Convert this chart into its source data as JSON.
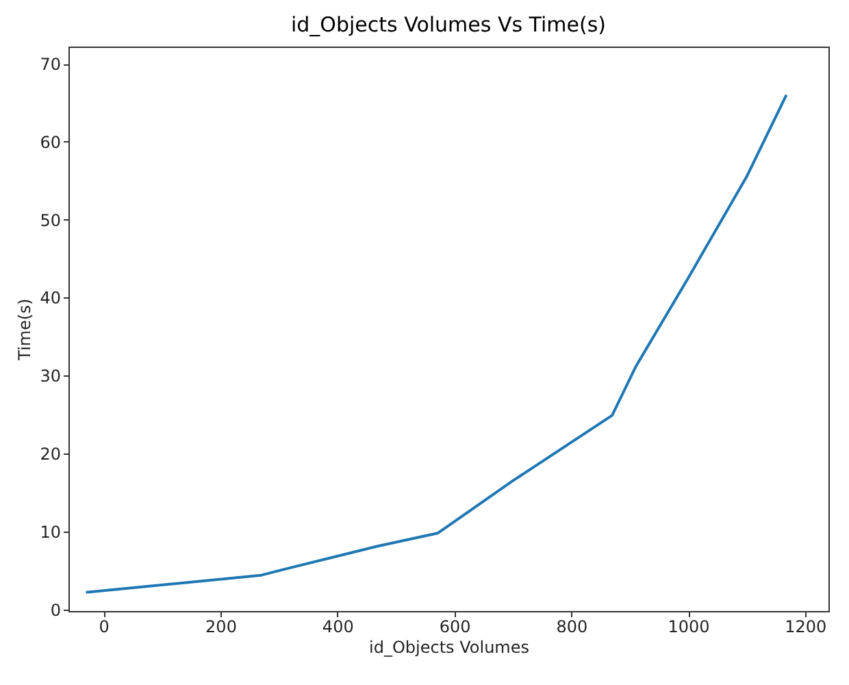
{
  "chart_data": {
    "type": "line",
    "title": "id_Objects Volumes Vs Time(s)",
    "xlabel": "id_Objects Volumes",
    "ylabel": "Time(s)",
    "x": [
      -30,
      270,
      317,
      468,
      572,
      700,
      870,
      910,
      1000,
      1100,
      1168
    ],
    "series": [
      {
        "color": "#1f77b4",
        "values": [
          2.2,
          4.4,
          5.3,
          8.1,
          9.8,
          16.5,
          24.9,
          31.1,
          42.5,
          55.5,
          66.0
        ]
      }
    ],
    "xlim": [
      -60,
      1240
    ],
    "xticks": [
      0,
      200,
      400,
      600,
      800,
      1000,
      1200
    ],
    "ylim": [
      -0.2,
      72.2
    ],
    "yticks": [
      0,
      10,
      20,
      30,
      40,
      50,
      60,
      70
    ],
    "grid": false
  }
}
